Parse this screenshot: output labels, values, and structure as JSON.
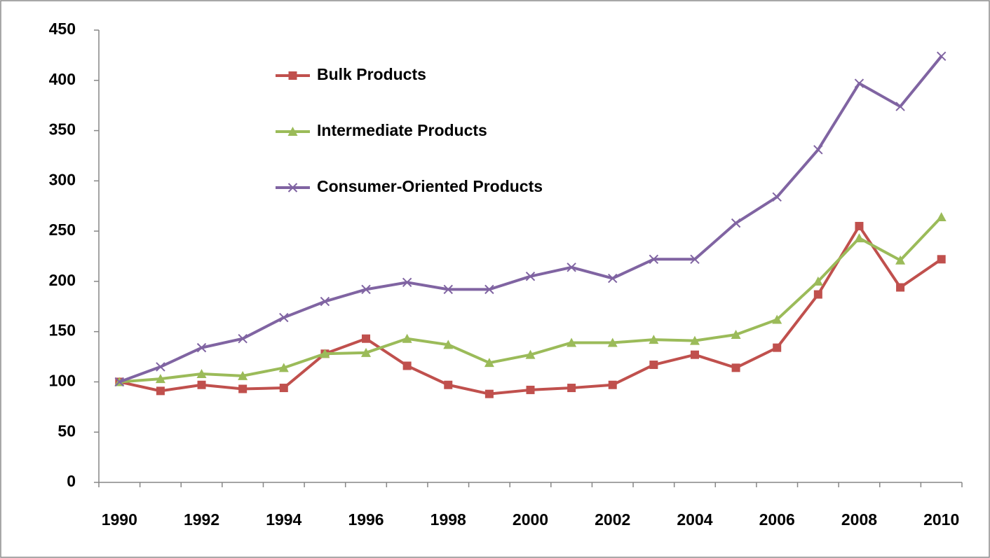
{
  "chart_data": {
    "type": "line",
    "categories": [
      "1990",
      null,
      "1992",
      null,
      "1994",
      null,
      "1996",
      null,
      "1998",
      null,
      "2000",
      null,
      "2002",
      null,
      "2004",
      null,
      "2006",
      null,
      "2008",
      null,
      "2010"
    ],
    "series": [
      {
        "name": "Bulk Products",
        "color": "#c0504d",
        "marker": "square",
        "values": [
          100,
          91,
          97,
          93,
          94,
          128,
          143,
          116,
          97,
          88,
          92,
          94,
          97,
          117,
          127,
          114,
          134,
          187,
          255,
          194,
          222
        ]
      },
      {
        "name": "Intermediate Products",
        "color": "#9bbb59",
        "marker": "triangle",
        "values": [
          100,
          103,
          108,
          106,
          114,
          128,
          129,
          143,
          137,
          119,
          127,
          139,
          139,
          142,
          141,
          147,
          162,
          200,
          243,
          221,
          264
        ]
      },
      {
        "name": "Consumer-Oriented Products",
        "color": "#8064a2",
        "marker": "x",
        "values": [
          100,
          115,
          134,
          143,
          164,
          180,
          192,
          199,
          192,
          192,
          205,
          214,
          203,
          222,
          222,
          258,
          284,
          331,
          397,
          374,
          424
        ]
      }
    ],
    "ylim": [
      0,
      450
    ],
    "yticks": [
      0,
      50,
      100,
      150,
      200,
      250,
      300,
      350,
      400,
      450
    ],
    "grid": false,
    "legend": "upper left"
  }
}
